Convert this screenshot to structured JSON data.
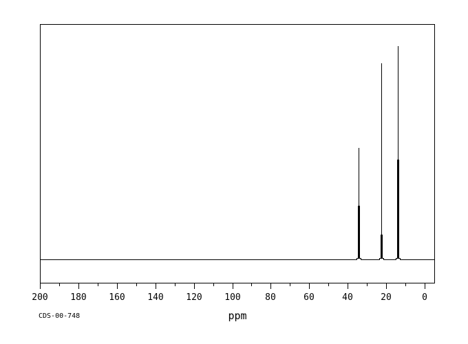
{
  "figure": {
    "catalog_id": "CDS-00-748",
    "colors": {
      "background": "#ffffff",
      "foreground": "#000000"
    }
  },
  "chart_data": {
    "type": "line",
    "subtype": "nmr-spectrum-13c",
    "title": "",
    "xlabel": "ppm",
    "ylabel": "",
    "x_axis": {
      "unit": "ppm",
      "min": 0,
      "max": 200,
      "reversed": true,
      "major_tick_interval": 20,
      "minor_tick_interval": 10,
      "major_tick_labels": [
        "200",
        "180",
        "160",
        "140",
        "120",
        "100",
        "80",
        "60",
        "40",
        "20",
        "0"
      ]
    },
    "baseline_intensity": 0,
    "peaks": [
      {
        "ppm": 34.5,
        "rel_intensity": 0.523,
        "base_thick_fraction": 0.481
      },
      {
        "ppm": 22.6,
        "rel_intensity": 0.919,
        "base_thick_fraction": 0.126
      },
      {
        "ppm": 13.9,
        "rel_intensity": 1.0,
        "base_thick_fraction": 0.468
      }
    ],
    "annotations": {
      "catalog_id": "CDS-00-748"
    },
    "legend": null,
    "grid": false
  }
}
